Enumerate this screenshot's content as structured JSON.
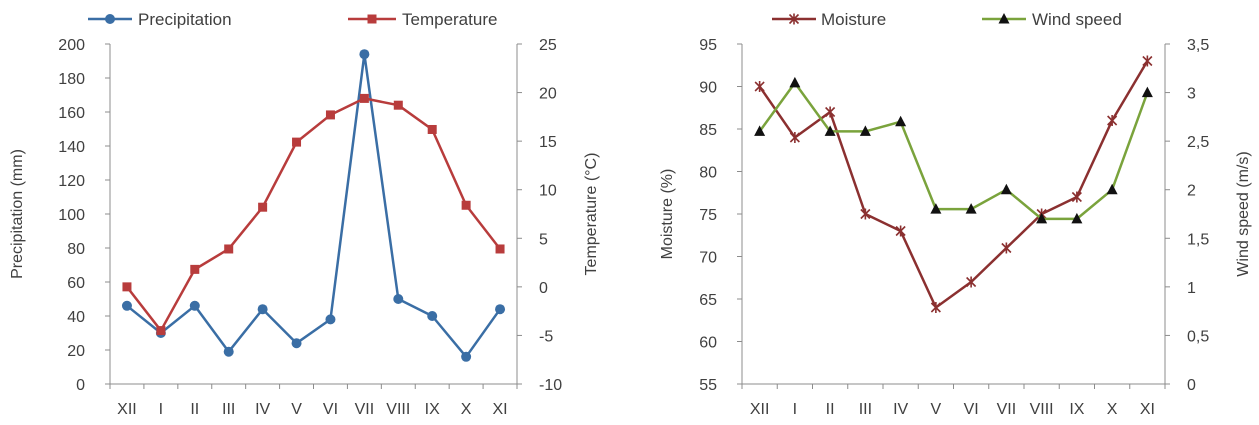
{
  "chart_data": [
    {
      "type": "line",
      "categories": [
        "XII",
        "I",
        "II",
        "III",
        "IV",
        "V",
        "VI",
        "VII",
        "VIII",
        "IX",
        "X",
        "XI"
      ],
      "series": [
        {
          "name": "Precipitation",
          "axis": "left",
          "color": "#3a6ea5",
          "marker": "circle",
          "values": [
            46,
            30,
            46,
            19,
            44,
            24,
            38,
            194,
            50,
            40,
            16,
            44
          ]
        },
        {
          "name": "Temperature",
          "axis": "right",
          "color": "#b83c3c",
          "marker": "square",
          "values": [
            0,
            -4.5,
            1.8,
            3.9,
            8.2,
            14.9,
            17.7,
            19.4,
            18.7,
            16.2,
            8.4,
            3.9
          ]
        }
      ],
      "ylabel": "Precipitation (mm)",
      "y2label": "Temperature (°C)",
      "ylim": [
        0,
        200
      ],
      "y2lim": [
        -10,
        25
      ],
      "yticks": [
        "0",
        "20",
        "40",
        "60",
        "80",
        "100",
        "120",
        "140",
        "160",
        "180",
        "200"
      ],
      "y2ticks": [
        "-10",
        "-5",
        "0",
        "5",
        "10",
        "15",
        "20",
        "25"
      ],
      "grid": false,
      "legend": "top"
    },
    {
      "type": "line",
      "categories": [
        "XII",
        "I",
        "II",
        "III",
        "IV",
        "V",
        "VI",
        "VII",
        "VIII",
        "IX",
        "X",
        "XI"
      ],
      "series": [
        {
          "name": "Moisture",
          "axis": "left",
          "color": "#8b3030",
          "marker": "star",
          "values": [
            90,
            84,
            87,
            75,
            73,
            64,
            67,
            71,
            75,
            77,
            86,
            93
          ]
        },
        {
          "name": "Wind speed",
          "axis": "right",
          "color": "#7aa33c",
          "marker": "triangle",
          "values": [
            2.6,
            3.1,
            2.6,
            2.6,
            2.7,
            1.8,
            1.8,
            2.0,
            1.7,
            1.7,
            2.0,
            3.0
          ]
        }
      ],
      "ylabel": "Moisture (%)",
      "y2label": "Wind speed (m/s)",
      "ylim": [
        55,
        95
      ],
      "y2lim": [
        0,
        3.5
      ],
      "yticks": [
        "55",
        "60",
        "65",
        "70",
        "75",
        "80",
        "85",
        "90",
        "95"
      ],
      "y2ticks": [
        "0",
        "0,5",
        "1",
        "1,5",
        "2",
        "2,5",
        "3",
        "3,5"
      ],
      "grid": false,
      "legend": "top"
    }
  ]
}
